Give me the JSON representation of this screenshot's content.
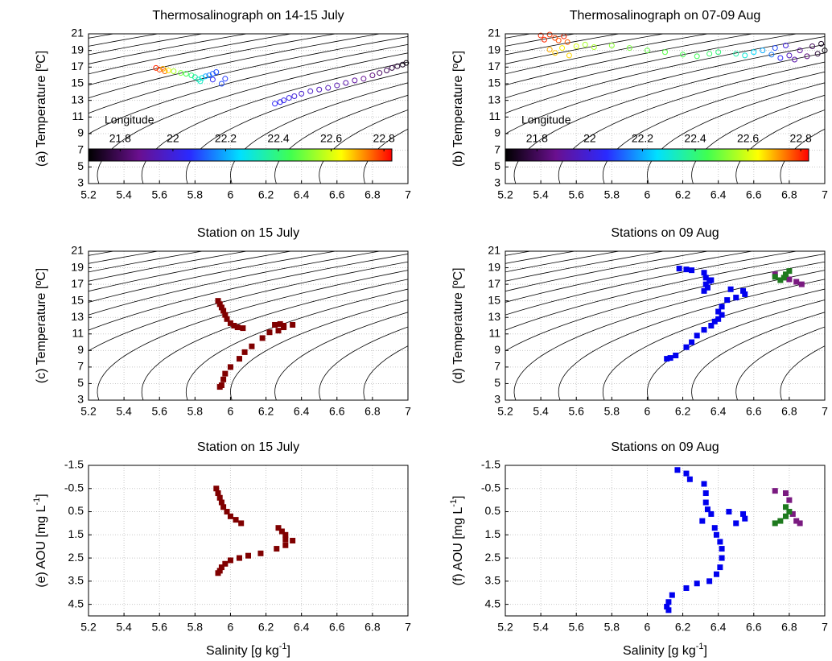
{
  "chart_data": [
    {
      "type": "scatter",
      "title": "Thermosalinograph on 14-15 July",
      "y_label": "(a) Temperature [ºC]",
      "xlim": [
        5.2,
        7
      ],
      "xticks": [
        5.2,
        5.4,
        5.6,
        5.8,
        6,
        6.2,
        6.4,
        6.6,
        6.8,
        7
      ],
      "ylim": [
        3,
        21
      ],
      "yticks": [
        3,
        5,
        7,
        9,
        11,
        13,
        15,
        17,
        19,
        21
      ],
      "grid": true,
      "isopycnals": true,
      "colorbar": {
        "label": "Longitude",
        "clim": [
          21.68,
          22.83
        ],
        "ticks": [
          21.8,
          22,
          22.2,
          22.4,
          22.6,
          22.8
        ],
        "colormap": [
          "#000000",
          "#6a0f8f",
          "#2a2aff",
          "#00e0ff",
          "#40ff50",
          "#ffff00",
          "#ff0000"
        ]
      },
      "series": [
        {
          "marker": "circle",
          "x": [
            5.58,
            5.6,
            5.62,
            5.63,
            5.65,
            5.68,
            5.72,
            5.75,
            5.78,
            5.8,
            5.82,
            5.83,
            5.84,
            5.86,
            5.88,
            5.9,
            5.92,
            5.9,
            5.95,
            5.97,
            6.25,
            6.28,
            6.3,
            6.33,
            6.36,
            6.4,
            6.45,
            6.5,
            6.55,
            6.6,
            6.65,
            6.7,
            6.75,
            6.8,
            6.84,
            6.88,
            6.91,
            6.94,
            6.97,
            6.99
          ],
          "y": [
            16.9,
            16.7,
            16.8,
            16.5,
            16.6,
            16.5,
            16.3,
            16.2,
            16.0,
            15.8,
            15.5,
            15.3,
            15.7,
            15.9,
            16.0,
            16.2,
            16.4,
            15.5,
            15.0,
            15.6,
            12.6,
            12.8,
            13.0,
            13.3,
            13.5,
            13.8,
            14.1,
            14.3,
            14.5,
            14.8,
            15.1,
            15.4,
            15.6,
            16.0,
            16.3,
            16.6,
            16.9,
            17.1,
            17.3,
            17.5
          ],
          "c": [
            22.8,
            22.78,
            22.7,
            22.75,
            22.65,
            22.55,
            22.5,
            22.45,
            22.4,
            22.35,
            22.33,
            22.32,
            22.3,
            22.2,
            22.15,
            22.12,
            22.1,
            22.05,
            22.1,
            22.08,
            22.05,
            22.04,
            22.03,
            22.02,
            22.0,
            21.98,
            21.97,
            21.95,
            21.94,
            21.93,
            21.92,
            21.9,
            21.88,
            21.85,
            21.82,
            21.8,
            21.77,
            21.75,
            21.72,
            21.7
          ]
        }
      ]
    },
    {
      "type": "scatter",
      "title": "Thermosalinograph on 07-09 Aug",
      "y_label": "(b) Temperature [ºC]",
      "xlim": [
        5.2,
        7
      ],
      "xticks": [
        5.2,
        5.4,
        5.6,
        5.8,
        6,
        6.2,
        6.4,
        6.6,
        6.8,
        7
      ],
      "ylim": [
        3,
        21
      ],
      "yticks": [
        3,
        5,
        7,
        9,
        11,
        13,
        15,
        17,
        19,
        21
      ],
      "grid": true,
      "isopycnals": true,
      "colorbar": {
        "label": "Longitude",
        "clim": [
          21.68,
          22.83
        ],
        "ticks": [
          21.8,
          22,
          22.2,
          22.4,
          22.6,
          22.8
        ],
        "colormap": [
          "#000000",
          "#6a0f8f",
          "#2a2aff",
          "#00e0ff",
          "#40ff50",
          "#ffff00",
          "#ff0000"
        ]
      },
      "series": [
        {
          "marker": "circle",
          "x": [
            5.4,
            5.42,
            5.45,
            5.48,
            5.5,
            5.53,
            5.55,
            5.45,
            5.48,
            5.52,
            5.56,
            5.6,
            5.65,
            5.7,
            5.8,
            5.9,
            6.0,
            6.1,
            6.2,
            6.28,
            6.35,
            6.4,
            6.5,
            6.55,
            6.6,
            6.65,
            6.7,
            6.72,
            6.75,
            6.78,
            6.8,
            6.83,
            6.86,
            6.9,
            6.93,
            6.96,
            6.98,
            7.0
          ],
          "y": [
            20.8,
            20.3,
            20.9,
            20.5,
            20.2,
            20.7,
            20.0,
            19.1,
            18.7,
            19.3,
            18.4,
            19.5,
            19.7,
            19.4,
            19.6,
            19.3,
            19.0,
            18.8,
            18.5,
            18.3,
            18.6,
            18.8,
            18.6,
            18.4,
            18.8,
            19.0,
            18.5,
            19.3,
            18.1,
            19.6,
            18.4,
            17.9,
            19.0,
            18.3,
            19.5,
            18.6,
            19.8,
            19.0
          ],
          "c": [
            22.8,
            22.8,
            22.79,
            22.78,
            22.77,
            22.8,
            22.76,
            22.7,
            22.68,
            22.65,
            22.67,
            22.6,
            22.55,
            22.55,
            22.52,
            22.5,
            22.48,
            22.47,
            22.45,
            22.44,
            22.42,
            22.4,
            22.35,
            22.3,
            22.25,
            22.2,
            22.15,
            22.1,
            22.05,
            22.0,
            21.95,
            21.92,
            21.9,
            21.85,
            21.8,
            21.75,
            21.72,
            21.7
          ]
        }
      ]
    },
    {
      "type": "scatter",
      "title": "Station on 15 July",
      "y_label": "(c) Temperature [ºC]",
      "xlim": [
        5.2,
        7
      ],
      "xticks": [
        5.2,
        5.4,
        5.6,
        5.8,
        6,
        6.2,
        6.4,
        6.6,
        6.8,
        7
      ],
      "ylim": [
        3,
        21
      ],
      "yticks": [
        3,
        5,
        7,
        9,
        11,
        13,
        15,
        17,
        19,
        21
      ],
      "grid": true,
      "isopycnals": true,
      "series": [
        {
          "marker": "square",
          "color": "#800000",
          "x": [
            5.93,
            5.94,
            5.95,
            5.96,
            5.97,
            5.98,
            6.0,
            6.02,
            6.04,
            6.07,
            6.25,
            6.28,
            6.3,
            6.35,
            6.3,
            6.27,
            6.22,
            6.18,
            6.12,
            6.08,
            6.05,
            6.0,
            5.97,
            5.96,
            5.95,
            5.94
          ],
          "y": [
            15.0,
            14.6,
            14.2,
            13.8,
            13.3,
            12.8,
            12.3,
            12.0,
            11.8,
            11.7,
            12.1,
            12.2,
            12.0,
            12.1,
            11.8,
            11.4,
            11.2,
            10.5,
            9.5,
            8.8,
            8.0,
            7.0,
            6.2,
            5.5,
            4.8,
            4.6
          ]
        }
      ]
    },
    {
      "type": "scatter",
      "title": "Stations on 09 Aug",
      "y_label": "(d) Temperature [ºC]",
      "xlim": [
        5.2,
        7
      ],
      "xticks": [
        5.2,
        5.4,
        5.6,
        5.8,
        6,
        6.2,
        6.4,
        6.6,
        6.8,
        7
      ],
      "ylim": [
        3,
        21
      ],
      "yticks": [
        3,
        5,
        7,
        9,
        11,
        13,
        15,
        17,
        19,
        21
      ],
      "grid": true,
      "isopycnals": true,
      "series": [
        {
          "marker": "square",
          "color": "#0000ee",
          "x": [
            6.18,
            6.22,
            6.25,
            6.32,
            6.33,
            6.35,
            6.33,
            6.34,
            6.36,
            6.32,
            6.47,
            6.54,
            6.55,
            6.5,
            6.45,
            6.42,
            6.4,
            6.42,
            6.4,
            6.38,
            6.36,
            6.32,
            6.28,
            6.25,
            6.22,
            6.16,
            6.13,
            6.11
          ],
          "y": [
            18.9,
            18.8,
            18.7,
            18.4,
            17.8,
            17.4,
            17.0,
            16.6,
            17.5,
            16.2,
            16.4,
            16.2,
            15.8,
            15.4,
            15.1,
            14.3,
            13.7,
            13.3,
            12.8,
            12.5,
            12.0,
            11.5,
            10.8,
            10.0,
            9.4,
            8.4,
            8.1,
            8.0
          ]
        },
        {
          "marker": "square",
          "color": "#7a1a80",
          "x": [
            6.72,
            6.8,
            6.84,
            6.87,
            6.78
          ],
          "y": [
            18.2,
            17.6,
            17.3,
            17.0,
            17.9
          ]
        },
        {
          "marker": "square",
          "color": "#1e7a1e",
          "x": [
            6.72,
            6.75,
            6.78,
            6.8,
            6.77
          ],
          "y": [
            17.9,
            17.5,
            18.2,
            18.6,
            17.8
          ]
        }
      ]
    },
    {
      "type": "scatter",
      "title": "Station on 15 July",
      "y_label": {
        "text": "(e) AOU [mg L",
        "sup": "-1",
        "after": "]"
      },
      "x_label": {
        "text": "Salinity [g kg",
        "sup": "-1",
        "after": "]"
      },
      "xlim": [
        5.2,
        7
      ],
      "xticks": [
        5.2,
        5.4,
        5.6,
        5.8,
        6,
        6.2,
        6.4,
        6.6,
        6.8,
        7
      ],
      "ylim": [
        -1.5,
        5
      ],
      "y_reversed": true,
      "yticks": [
        -1.5,
        -0.5,
        0.5,
        1.5,
        2.5,
        3.5,
        4.5
      ],
      "grid": true,
      "series": [
        {
          "marker": "square",
          "color": "#800000",
          "x": [
            5.92,
            5.93,
            5.94,
            5.95,
            5.96,
            5.98,
            6.0,
            6.03,
            6.06,
            6.27,
            6.29,
            6.31,
            6.31,
            6.35,
            6.31,
            6.26,
            6.17,
            6.1,
            6.05,
            6.0,
            5.97,
            5.95,
            5.94,
            5.93
          ],
          "y": [
            -0.5,
            -0.3,
            -0.1,
            0.1,
            0.3,
            0.5,
            0.7,
            0.85,
            1.0,
            1.2,
            1.35,
            1.5,
            1.7,
            1.75,
            1.95,
            2.1,
            2.3,
            2.4,
            2.5,
            2.6,
            2.75,
            2.9,
            3.05,
            3.15
          ]
        }
      ]
    },
    {
      "type": "scatter",
      "title": "Stations on 09 Aug",
      "y_label": {
        "text": "(f) AOU [mg L",
        "sup": "-1",
        "after": "]"
      },
      "x_label": {
        "text": "Salinity [g kg",
        "sup": "-1",
        "after": "]"
      },
      "xlim": [
        5.2,
        7
      ],
      "xticks": [
        5.2,
        5.4,
        5.6,
        5.8,
        6,
        6.2,
        6.4,
        6.6,
        6.8,
        7
      ],
      "ylim": [
        -1.5,
        5
      ],
      "y_reversed": true,
      "yticks": [
        -1.5,
        -0.5,
        0.5,
        1.5,
        2.5,
        3.5,
        4.5
      ],
      "grid": true,
      "series": [
        {
          "marker": "square",
          "color": "#0000ee",
          "x": [
            6.17,
            6.22,
            6.24,
            6.32,
            6.33,
            6.33,
            6.34,
            6.36,
            6.31,
            6.46,
            6.54,
            6.55,
            6.5,
            6.38,
            6.39,
            6.41,
            6.42,
            6.42,
            6.41,
            6.39,
            6.35,
            6.28,
            6.22,
            6.14,
            6.12,
            6.11,
            6.12
          ],
          "y": [
            -1.3,
            -1.15,
            -0.9,
            -0.7,
            -0.3,
            0.1,
            0.4,
            0.6,
            0.9,
            0.5,
            0.6,
            0.8,
            1.0,
            1.2,
            1.5,
            1.8,
            2.1,
            2.5,
            2.9,
            3.2,
            3.5,
            3.6,
            3.8,
            4.1,
            4.4,
            4.6,
            4.75
          ]
        },
        {
          "marker": "square",
          "color": "#7a1a80",
          "x": [
            6.72,
            6.78,
            6.8,
            6.82,
            6.86,
            6.84
          ],
          "y": [
            -0.4,
            -0.3,
            0.0,
            0.6,
            1.0,
            0.9
          ]
        },
        {
          "marker": "square",
          "color": "#1e7a1e",
          "x": [
            6.72,
            6.75,
            6.78,
            6.8,
            6.78
          ],
          "y": [
            1.0,
            0.9,
            0.7,
            0.5,
            0.3
          ]
        }
      ]
    }
  ]
}
